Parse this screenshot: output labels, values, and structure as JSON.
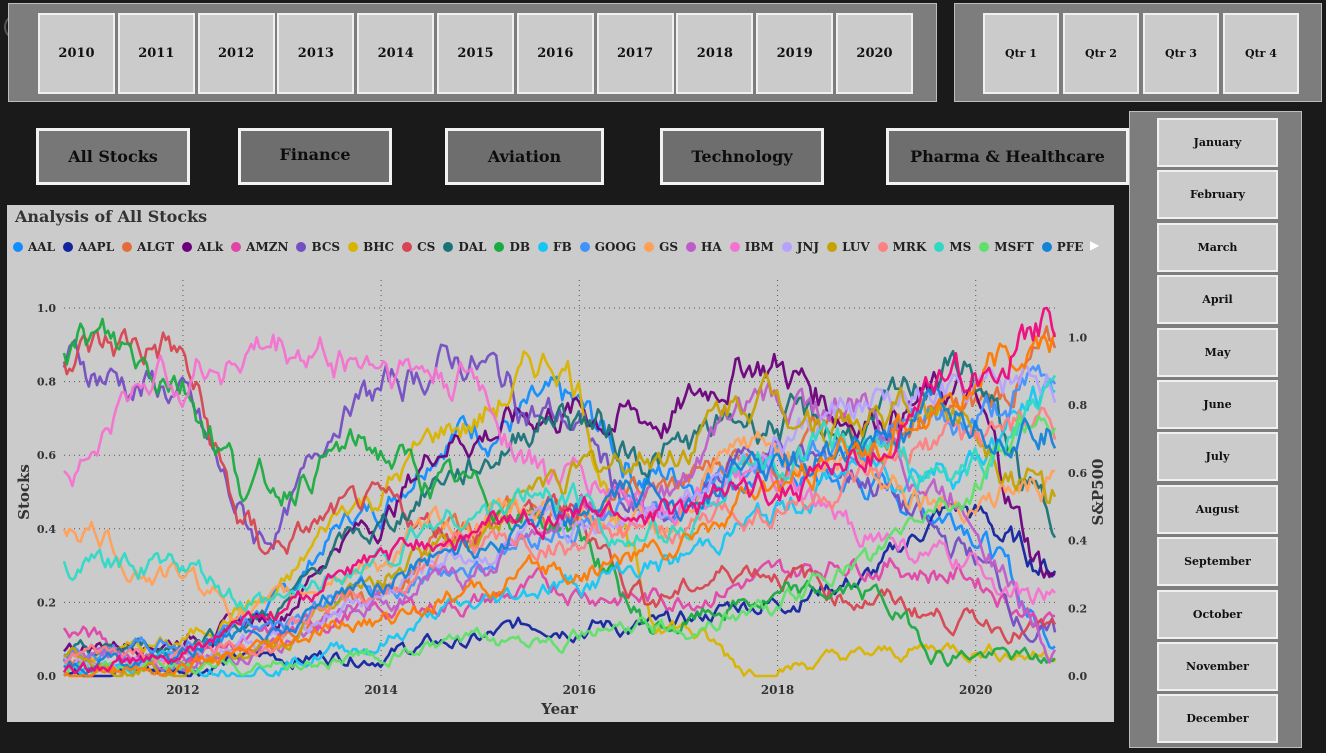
{
  "years": [
    "2010",
    "2011",
    "2012",
    "2013",
    "2014",
    "2015",
    "2016",
    "2017",
    "2018",
    "2019",
    "2020"
  ],
  "quarters": [
    "Qtr 1",
    "Qtr 2",
    "Qtr 3",
    "Qtr 4"
  ],
  "categories": [
    "All Stocks",
    "Finance",
    "Aviation",
    "Technology",
    "Pharma & Healthcare"
  ],
  "months": [
    "January",
    "February",
    "March",
    "April",
    "May",
    "June",
    "July",
    "August",
    "September",
    "October",
    "November",
    "December"
  ],
  "back_icon": "back-arrow-icon",
  "chart": {
    "title": "Analysis of All Stocks",
    "legend_next_icon": "caret-right-icon"
  },
  "chart_data": {
    "type": "line",
    "x_label": "Year",
    "y_label": "Stocks",
    "y2_label": "S&P500",
    "x_ticks": [
      "2012",
      "2014",
      "2016",
      "2018",
      "2020"
    ],
    "y_ticks": [
      "0.0",
      "0.2",
      "0.4",
      "0.6",
      "0.8",
      "1.0"
    ],
    "y2_ticks": [
      "0.0",
      "0.2",
      "0.4",
      "0.6",
      "0.8",
      "1.0"
    ],
    "x_range": [
      2010.8,
      2020.8
    ],
    "ylim": [
      0,
      1
    ],
    "y2lim": [
      0,
      1
    ],
    "grid": "dotted",
    "legend_position": "top",
    "series": [
      {
        "name": "AAL",
        "color": "#118dff",
        "values": [
          0.05,
          0.02,
          0.18,
          0.44,
          0.68,
          0.72,
          0.55,
          0.55,
          0.52,
          0.45,
          0.12
        ]
      },
      {
        "name": "AAPL",
        "color": "#12239e",
        "values": [
          0.01,
          0.02,
          0.05,
          0.06,
          0.09,
          0.15,
          0.13,
          0.2,
          0.26,
          0.45,
          0.3
        ]
      },
      {
        "name": "ALGT",
        "color": "#e66c37",
        "values": [
          0.05,
          0.04,
          0.08,
          0.2,
          0.4,
          0.45,
          0.5,
          0.62,
          0.66,
          0.7,
          0.86
        ]
      },
      {
        "name": "ALk",
        "color": "#6b007b",
        "values": [
          0.08,
          0.1,
          0.15,
          0.4,
          0.66,
          0.72,
          0.7,
          0.86,
          0.72,
          0.76,
          0.28
        ]
      },
      {
        "name": "AMZN",
        "color": "#e044a7",
        "values": [
          0.12,
          0.05,
          0.1,
          0.17,
          0.2,
          0.24,
          0.21,
          0.26,
          0.32,
          0.28,
          0.16
        ]
      },
      {
        "name": "BCS",
        "color": "#744ec2",
        "values": [
          0.85,
          0.78,
          0.38,
          0.76,
          0.86,
          0.7,
          0.4,
          0.62,
          0.55,
          0.35,
          0.1
        ]
      },
      {
        "name": "BHC",
        "color": "#d9b300",
        "values": [
          0.06,
          0.08,
          0.2,
          0.48,
          0.68,
          0.86,
          0.16,
          0.02,
          0.05,
          0.08,
          0.06
        ]
      },
      {
        "name": "CS",
        "color": "#d64550",
        "values": [
          0.88,
          0.9,
          0.35,
          0.45,
          0.4,
          0.45,
          0.22,
          0.3,
          0.22,
          0.16,
          0.12
        ]
      },
      {
        "name": "DAL",
        "color": "#197278",
        "values": [
          0.05,
          0.08,
          0.16,
          0.38,
          0.56,
          0.72,
          0.6,
          0.7,
          0.66,
          0.84,
          0.42
        ]
      },
      {
        "name": "DB",
        "color": "#1aab40",
        "values": [
          0.92,
          0.85,
          0.5,
          0.62,
          0.5,
          0.42,
          0.13,
          0.2,
          0.23,
          0.06,
          0.04
        ]
      },
      {
        "name": "FB",
        "color": "#15c6f4",
        "values": [
          0.03,
          0.04,
          0.03,
          0.08,
          0.18,
          0.25,
          0.3,
          0.42,
          0.56,
          0.58,
          0.76
        ]
      },
      {
        "name": "GOOG",
        "color": "#4092ff",
        "values": [
          0.06,
          0.08,
          0.15,
          0.22,
          0.3,
          0.4,
          0.46,
          0.58,
          0.65,
          0.68,
          0.8
        ]
      },
      {
        "name": "GS",
        "color": "#ffa058",
        "values": [
          0.42,
          0.28,
          0.18,
          0.3,
          0.42,
          0.46,
          0.4,
          0.62,
          0.58,
          0.48,
          0.52
        ]
      },
      {
        "name": "HA",
        "color": "#be5dc9",
        "values": [
          0.05,
          0.05,
          0.06,
          0.2,
          0.26,
          0.44,
          0.5,
          0.74,
          0.72,
          0.48,
          0.1
        ]
      },
      {
        "name": "IBM",
        "color": "#f472d0",
        "values": [
          0.55,
          0.82,
          0.88,
          0.86,
          0.8,
          0.54,
          0.48,
          0.52,
          0.4,
          0.3,
          0.2
        ]
      },
      {
        "name": "JNJ",
        "color": "#b5a1ff",
        "values": [
          0.04,
          0.05,
          0.1,
          0.2,
          0.33,
          0.38,
          0.48,
          0.62,
          0.72,
          0.74,
          0.82
        ]
      },
      {
        "name": "LUV",
        "color": "#c4a200",
        "values": [
          0.04,
          0.03,
          0.06,
          0.24,
          0.38,
          0.54,
          0.6,
          0.76,
          0.7,
          0.72,
          0.5
        ]
      },
      {
        "name": "MRK",
        "color": "#ff8080",
        "values": [
          0.05,
          0.05,
          0.1,
          0.22,
          0.36,
          0.36,
          0.38,
          0.45,
          0.5,
          0.64,
          0.68
        ]
      },
      {
        "name": "MS",
        "color": "#2fd9c5",
        "values": [
          0.3,
          0.3,
          0.18,
          0.3,
          0.44,
          0.5,
          0.36,
          0.58,
          0.62,
          0.54,
          0.75
        ]
      },
      {
        "name": "MSFT",
        "color": "#5fe069",
        "values": [
          0.01,
          0.02,
          0.03,
          0.05,
          0.08,
          0.12,
          0.12,
          0.18,
          0.3,
          0.48,
          0.72
        ]
      },
      {
        "name": "PFE",
        "color": "#1283d9",
        "values": [
          0.04,
          0.05,
          0.12,
          0.25,
          0.35,
          0.44,
          0.48,
          0.56,
          0.62,
          0.7,
          0.66
        ]
      },
      {
        "name": "",
        "color": "#ff7a00",
        "values": [
          0.01,
          0.02,
          0.06,
          0.14,
          0.22,
          0.28,
          0.34,
          0.48,
          0.6,
          0.78,
          0.9
        ]
      },
      {
        "name": "",
        "color": "#ee0a7c",
        "values": [
          0.02,
          0.04,
          0.16,
          0.3,
          0.38,
          0.44,
          0.44,
          0.5,
          0.58,
          0.8,
          0.95
        ]
      }
    ]
  }
}
